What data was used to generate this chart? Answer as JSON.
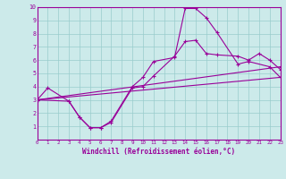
{
  "xlabel": "Windchill (Refroidissement éolien,°C)",
  "bg_color": "#cceaea",
  "line_color": "#990099",
  "grid_color": "#99cccc",
  "axis_color": "#990099",
  "xlim": [
    0,
    23
  ],
  "ylim": [
    0,
    10
  ],
  "xtick_labels": [
    "0",
    "1",
    "2",
    "3",
    "4",
    "5",
    "6",
    "7",
    "8",
    "9",
    "10",
    "11",
    "12",
    "13",
    "14",
    "15",
    "16",
    "17",
    "18",
    "19",
    "20",
    "21",
    "22",
    "23"
  ],
  "ytick_labels": [
    "1",
    "2",
    "3",
    "4",
    "5",
    "6",
    "7",
    "8",
    "9",
    "10"
  ],
  "series": [
    {
      "x": [
        0,
        1,
        3,
        4,
        5,
        6,
        7,
        9,
        10,
        11,
        13,
        14,
        15,
        16,
        17,
        19,
        20,
        21,
        22,
        23
      ],
      "y": [
        3.0,
        3.9,
        2.9,
        1.7,
        0.9,
        0.9,
        1.3,
        3.9,
        4.0,
        4.8,
        6.3,
        7.4,
        7.5,
        6.5,
        6.4,
        6.3,
        6.0,
        6.5,
        6.0,
        5.3
      ]
    },
    {
      "x": [
        0,
        3,
        4,
        5,
        6,
        7,
        9,
        10,
        11,
        13,
        14,
        15,
        16,
        17,
        19,
        20,
        22,
        23
      ],
      "y": [
        3.0,
        2.9,
        1.7,
        0.9,
        0.9,
        1.4,
        4.0,
        4.7,
        5.9,
        6.2,
        9.9,
        9.9,
        9.2,
        8.1,
        5.7,
        5.9,
        5.5,
        4.7
      ]
    },
    {
      "x": [
        0,
        23
      ],
      "y": [
        3.0,
        4.7
      ]
    },
    {
      "x": [
        0,
        23
      ],
      "y": [
        3.0,
        5.5
      ]
    }
  ]
}
